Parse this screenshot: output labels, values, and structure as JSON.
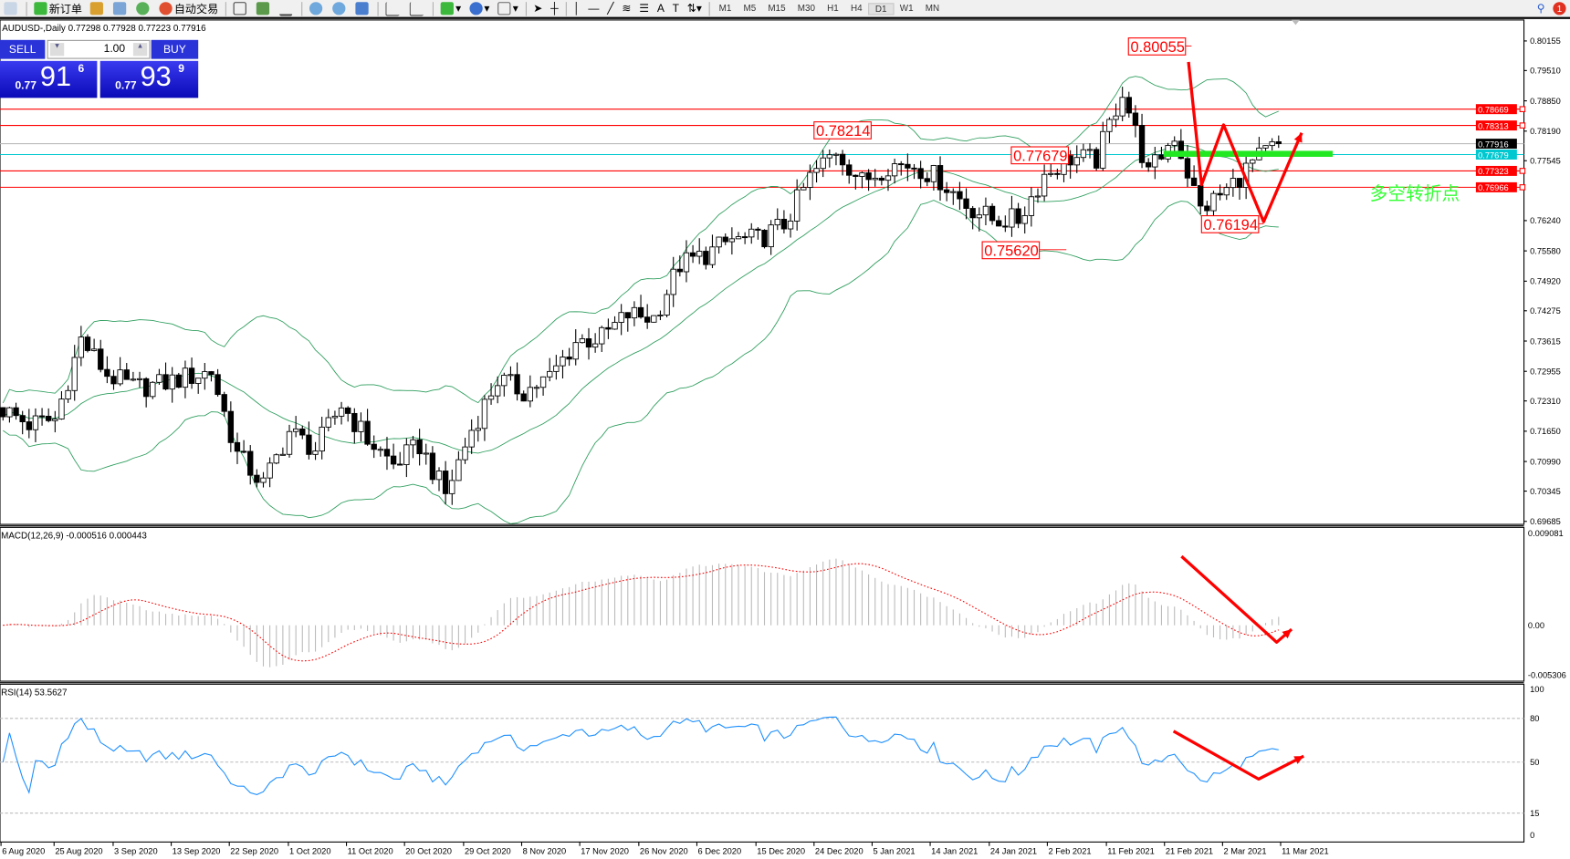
{
  "toolbar": {
    "new_order": "新订单",
    "auto_trading": "自动交易",
    "timeframes": [
      "M1",
      "M5",
      "M15",
      "M30",
      "H1",
      "H4",
      "D1",
      "W1",
      "MN"
    ],
    "active_timeframe": "D1",
    "notification_count": "1"
  },
  "chart": {
    "symbol_info": "AUDUSD-,Daily  0.77298 0.77928 0.77223 0.77916"
  },
  "trade_panel": {
    "sell_label": "SELL",
    "buy_label": "BUY",
    "lot": "1.00",
    "sell_prefix": "0.77",
    "sell_big": "91",
    "sell_sup": "6",
    "buy_prefix": "0.77",
    "buy_big": "93",
    "buy_sup": "9"
  },
  "price_axis": [
    "0.80155",
    "0.79510",
    "0.78850",
    "0.78190",
    "0.77545",
    "0.76240",
    "0.75580",
    "0.74920",
    "0.74275",
    "0.73615",
    "0.72955",
    "0.72310",
    "0.71650",
    "0.70990",
    "0.70345",
    "0.69685"
  ],
  "levels": [
    {
      "price": "0.78669",
      "color": "#ff0000"
    },
    {
      "price": "0.78313",
      "color": "#ff0000"
    },
    {
      "price": "0.77916",
      "color": "#000000"
    },
    {
      "price": "0.77679",
      "color": "#00c8d0"
    },
    {
      "price": "0.77323",
      "color": "#ff0000"
    },
    {
      "price": "0.76966",
      "color": "#ff0000"
    }
  ],
  "annotations": {
    "price_labels": [
      "0.80055",
      "0.78214",
      "0.77679",
      "0.75620",
      "0.76194"
    ],
    "turning_point_text": "多空转折点",
    "turning_point_color": "#33ff33"
  },
  "macd": {
    "label": "MACD(12,26,9) -0.000516 0.000443",
    "axis": [
      "0.009081",
      "0.00",
      "-0.005306"
    ]
  },
  "rsi": {
    "label": "RSI(14) 53.5627",
    "axis": [
      "100",
      "80",
      "50",
      "15",
      "0"
    ]
  },
  "date_axis": [
    "6 Aug 2020",
    "25 Aug 2020",
    "3 Sep 2020",
    "13 Sep 2020",
    "22 Sep 2020",
    "1 Oct 2020",
    "11 Oct 2020",
    "20 Oct 2020",
    "29 Oct 2020",
    "8 Nov 2020",
    "17 Nov 2020",
    "26 Nov 2020",
    "6 Dec 2020",
    "15 Dec 2020",
    "24 Dec 2020",
    "5 Jan 2021",
    "14 Jan 2021",
    "24 Jan 2021",
    "2 Feb 2021",
    "11 Feb 2021",
    "21 Feb 2021",
    "2 Mar 2021",
    "11 Mar 2021"
  ],
  "chart_data": {
    "type": "candlestick",
    "symbol": "AUDUSD",
    "timeframe": "Daily",
    "sampled_closes": [
      0.72123,
      0.71796,
      0.71905,
      0.73647,
      0.72885,
      0.72602,
      0.72667,
      0.72819,
      0.7295,
      0.71143,
      0.7049,
      0.71644,
      0.71252,
      0.72232,
      0.7147,
      0.70926,
      0.71339,
      0.70273,
      0.71687,
      0.72776,
      0.72514,
      0.72819,
      0.73603,
      0.7369,
      0.74191,
      0.74125,
      0.75279,
      0.75497,
      0.75823,
      0.75823,
      0.7615,
      0.77173,
      0.77782,
      0.77086,
      0.77456,
      0.77456,
      0.77129,
      0.76585,
      0.76259,
      0.76259,
      0.77238,
      0.77608,
      0.77565,
      0.79088,
      0.77238,
      0.78109,
      0.76476,
      0.769,
      0.775,
      0.77916
    ],
    "ylim": [
      0.69685,
      0.80155
    ],
    "indicators": [
      "Bollinger Bands",
      "MACD(12,26,9)",
      "RSI(14)"
    ]
  }
}
